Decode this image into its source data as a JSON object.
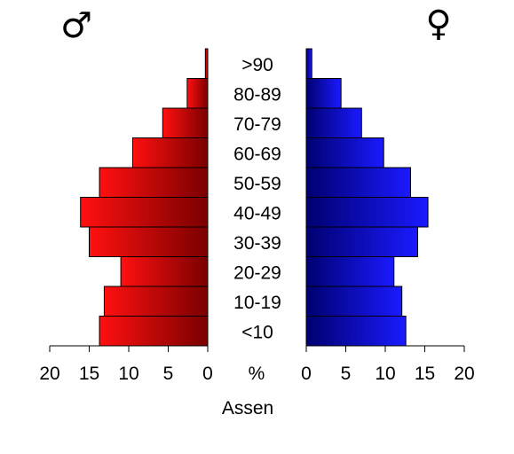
{
  "chart_data": {
    "type": "bar",
    "title": "",
    "xlabel": "Assen",
    "center_unit_label": "%",
    "male_symbol": "♂",
    "female_symbol": "♀",
    "categories": [
      "<10",
      "10-19",
      "20-29",
      "30-39",
      "40-49",
      "50-59",
      "60-69",
      "70-79",
      "80-89",
      ">90"
    ],
    "series": [
      {
        "name": "♂",
        "values": [
          13.7,
          13.1,
          11.0,
          15.0,
          16.1,
          13.7,
          9.5,
          5.7,
          2.6,
          0.3
        ]
      },
      {
        "name": "♀",
        "values": [
          12.6,
          12.1,
          11.1,
          14.1,
          15.4,
          13.2,
          9.8,
          7.0,
          4.4,
          0.7
        ]
      }
    ],
    "xlim": [
      0,
      20
    ],
    "xticks": [
      "20",
      "15",
      "10",
      "5",
      "0"
    ],
    "xticks_right": [
      "0",
      "5",
      "10",
      "15",
      "20"
    ],
    "colors": {
      "male_dark": "#7a0000",
      "male_light": "#ff1010",
      "female_dark": "#000070",
      "female_light": "#1a1aff"
    }
  }
}
